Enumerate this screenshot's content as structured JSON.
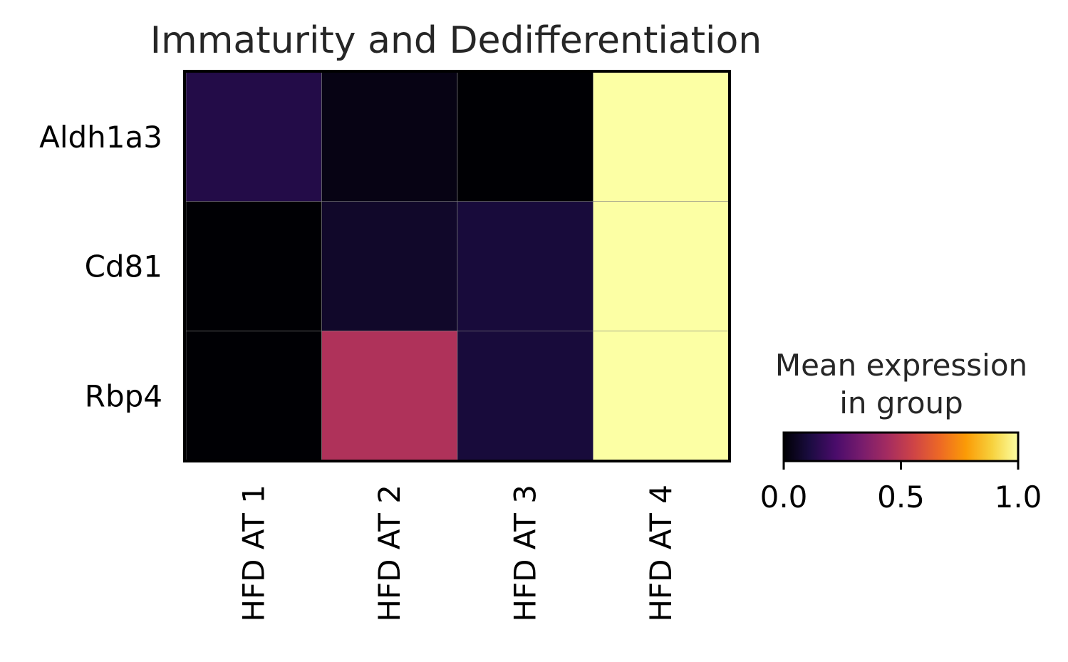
{
  "chart_data": {
    "type": "heatmap",
    "title": "Immaturity and Dedifferentiation",
    "rows": [
      "Aldh1a3",
      "Cd81",
      "Rbp4"
    ],
    "columns": [
      "HFD AT 1",
      "HFD AT 2",
      "HFD AT 3",
      "HFD AT 4"
    ],
    "values": [
      [
        0.13,
        0.03,
        0.0,
        1.0
      ],
      [
        0.0,
        0.07,
        0.1,
        1.0
      ],
      [
        0.0,
        0.47,
        0.1,
        1.0
      ]
    ],
    "colormap": "inferno",
    "colormap_stops": [
      "#000004",
      "#1b0c41",
      "#4a0c6b",
      "#781c6d",
      "#a52c60",
      "#cf4446",
      "#ed6925",
      "#fb9b06",
      "#f7d13d",
      "#fcffa4"
    ],
    "colorbar": {
      "title_lines": [
        "Mean expression",
        "in group"
      ],
      "ticks": [
        "0.0",
        "0.5",
        "1.0"
      ],
      "range": [
        0,
        1
      ]
    }
  }
}
